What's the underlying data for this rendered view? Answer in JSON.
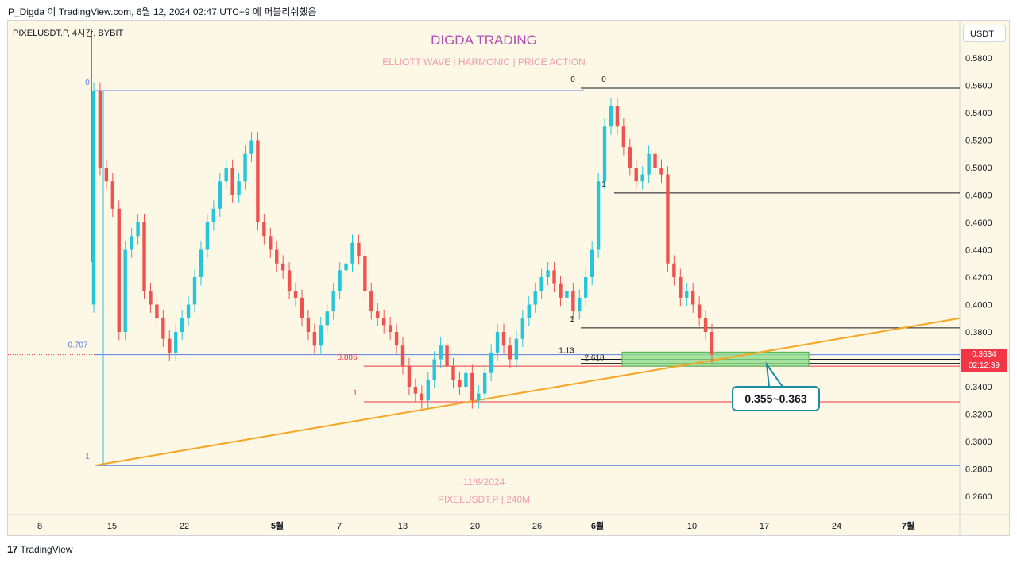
{
  "header": {
    "caption": "P_Digda 이 TradingView.com, 6월 12, 2024 02:47 UTC+9 에 퍼블리쉬했음"
  },
  "symbol": {
    "line": "PIXELUSDT.P, 4시간, BYBIT"
  },
  "unit_label": "USDT",
  "watermark": {
    "title": "DIGDA TRADING",
    "subtitle": "ELLIOTT WAVE   |   HARMONIC   |   PRICE ACTION",
    "date": "11/6/2024",
    "instrument": "PIXELUSDT.P | 240M"
  },
  "callout_text": "0.355~0.363",
  "price_tag": {
    "price": "0.3634",
    "countdown": "02:12:39"
  },
  "brand": {
    "logo": "17",
    "name": "TradingView"
  },
  "colors": {
    "up": "#26c6da",
    "down": "#ef5350",
    "trendline": "#f5a623",
    "fib_blue": "#5b7fe8",
    "fib_red": "#f23645",
    "zone_fill": "#8fdc8a",
    "watermark_title": "#b04fb6",
    "watermark_sub": "#f29ab0"
  },
  "chart_data": {
    "type": "candlestick",
    "instrument": "PIXELUSDT.P",
    "timeframe": "4시간",
    "exchange": "BYBIT",
    "y_ticks": [
      "0.5800",
      "0.5600",
      "0.5400",
      "0.5200",
      "0.5000",
      "0.4800",
      "0.4600",
      "0.4400",
      "0.4200",
      "0.4000",
      "0.3800",
      "0.3600",
      "0.3400",
      "0.3200",
      "0.3000",
      "0.2800",
      "0.2600"
    ],
    "x_ticks": [
      "8",
      "15",
      "22",
      "5월",
      "7",
      "13",
      "20",
      "26",
      "6월",
      "10",
      "17",
      "24",
      "7월"
    ],
    "ylim": [
      0.25,
      0.59
    ],
    "last_price": 0.3634,
    "candles_approx_closes": [
      0.5562,
      0.5,
      0.49,
      0.47,
      0.38,
      0.44,
      0.45,
      0.46,
      0.41,
      0.4,
      0.39,
      0.375,
      0.365,
      0.38,
      0.39,
      0.4,
      0.42,
      0.44,
      0.46,
      0.47,
      0.49,
      0.5,
      0.48,
      0.49,
      0.51,
      0.52,
      0.46,
      0.45,
      0.44,
      0.43,
      0.425,
      0.41,
      0.405,
      0.39,
      0.38,
      0.37,
      0.385,
      0.395,
      0.41,
      0.425,
      0.43,
      0.445,
      0.435,
      0.41,
      0.395,
      0.39,
      0.385,
      0.38,
      0.37,
      0.355,
      0.34,
      0.335,
      0.33,
      0.345,
      0.36,
      0.37,
      0.355,
      0.345,
      0.34,
      0.35,
      0.33,
      0.335,
      0.35,
      0.365,
      0.38,
      0.37,
      0.36,
      0.375,
      0.39,
      0.4,
      0.41,
      0.42,
      0.425,
      0.415,
      0.405,
      0.41,
      0.395,
      0.405,
      0.42,
      0.44,
      0.49,
      0.53,
      0.545,
      0.53,
      0.515,
      0.5,
      0.49,
      0.495,
      0.51,
      0.5,
      0.495,
      0.43,
      0.42,
      0.405,
      0.41,
      0.4,
      0.39,
      0.38,
      0.3634
    ],
    "levels": [
      {
        "label": "0",
        "value": 0.5562,
        "color": "fib_blue"
      },
      {
        "label": "0.707",
        "value": 0.3634,
        "color": "fib_blue"
      },
      {
        "label": "1",
        "value": 0.2825,
        "color": "fib_blue"
      },
      {
        "label": "0.886",
        "value": 0.355,
        "color": "fib_red"
      },
      {
        "label": "1",
        "value": 0.329,
        "color": "fib_red"
      },
      {
        "label": "0",
        "value": 0.558,
        "color": "black"
      },
      {
        "label": "1",
        "value": 0.4815,
        "color": "black"
      },
      {
        "label": "1",
        "value": 0.383,
        "color": "black"
      },
      {
        "label": "1.13",
        "value": 0.36,
        "color": "black"
      },
      {
        "label": "2.618",
        "value": 0.357,
        "color": "black"
      }
    ],
    "zone": {
      "from": 0.355,
      "to": 0.363,
      "label": "0.355~0.363"
    },
    "trendline": {
      "from": 0.2825,
      "to": 0.39
    }
  }
}
